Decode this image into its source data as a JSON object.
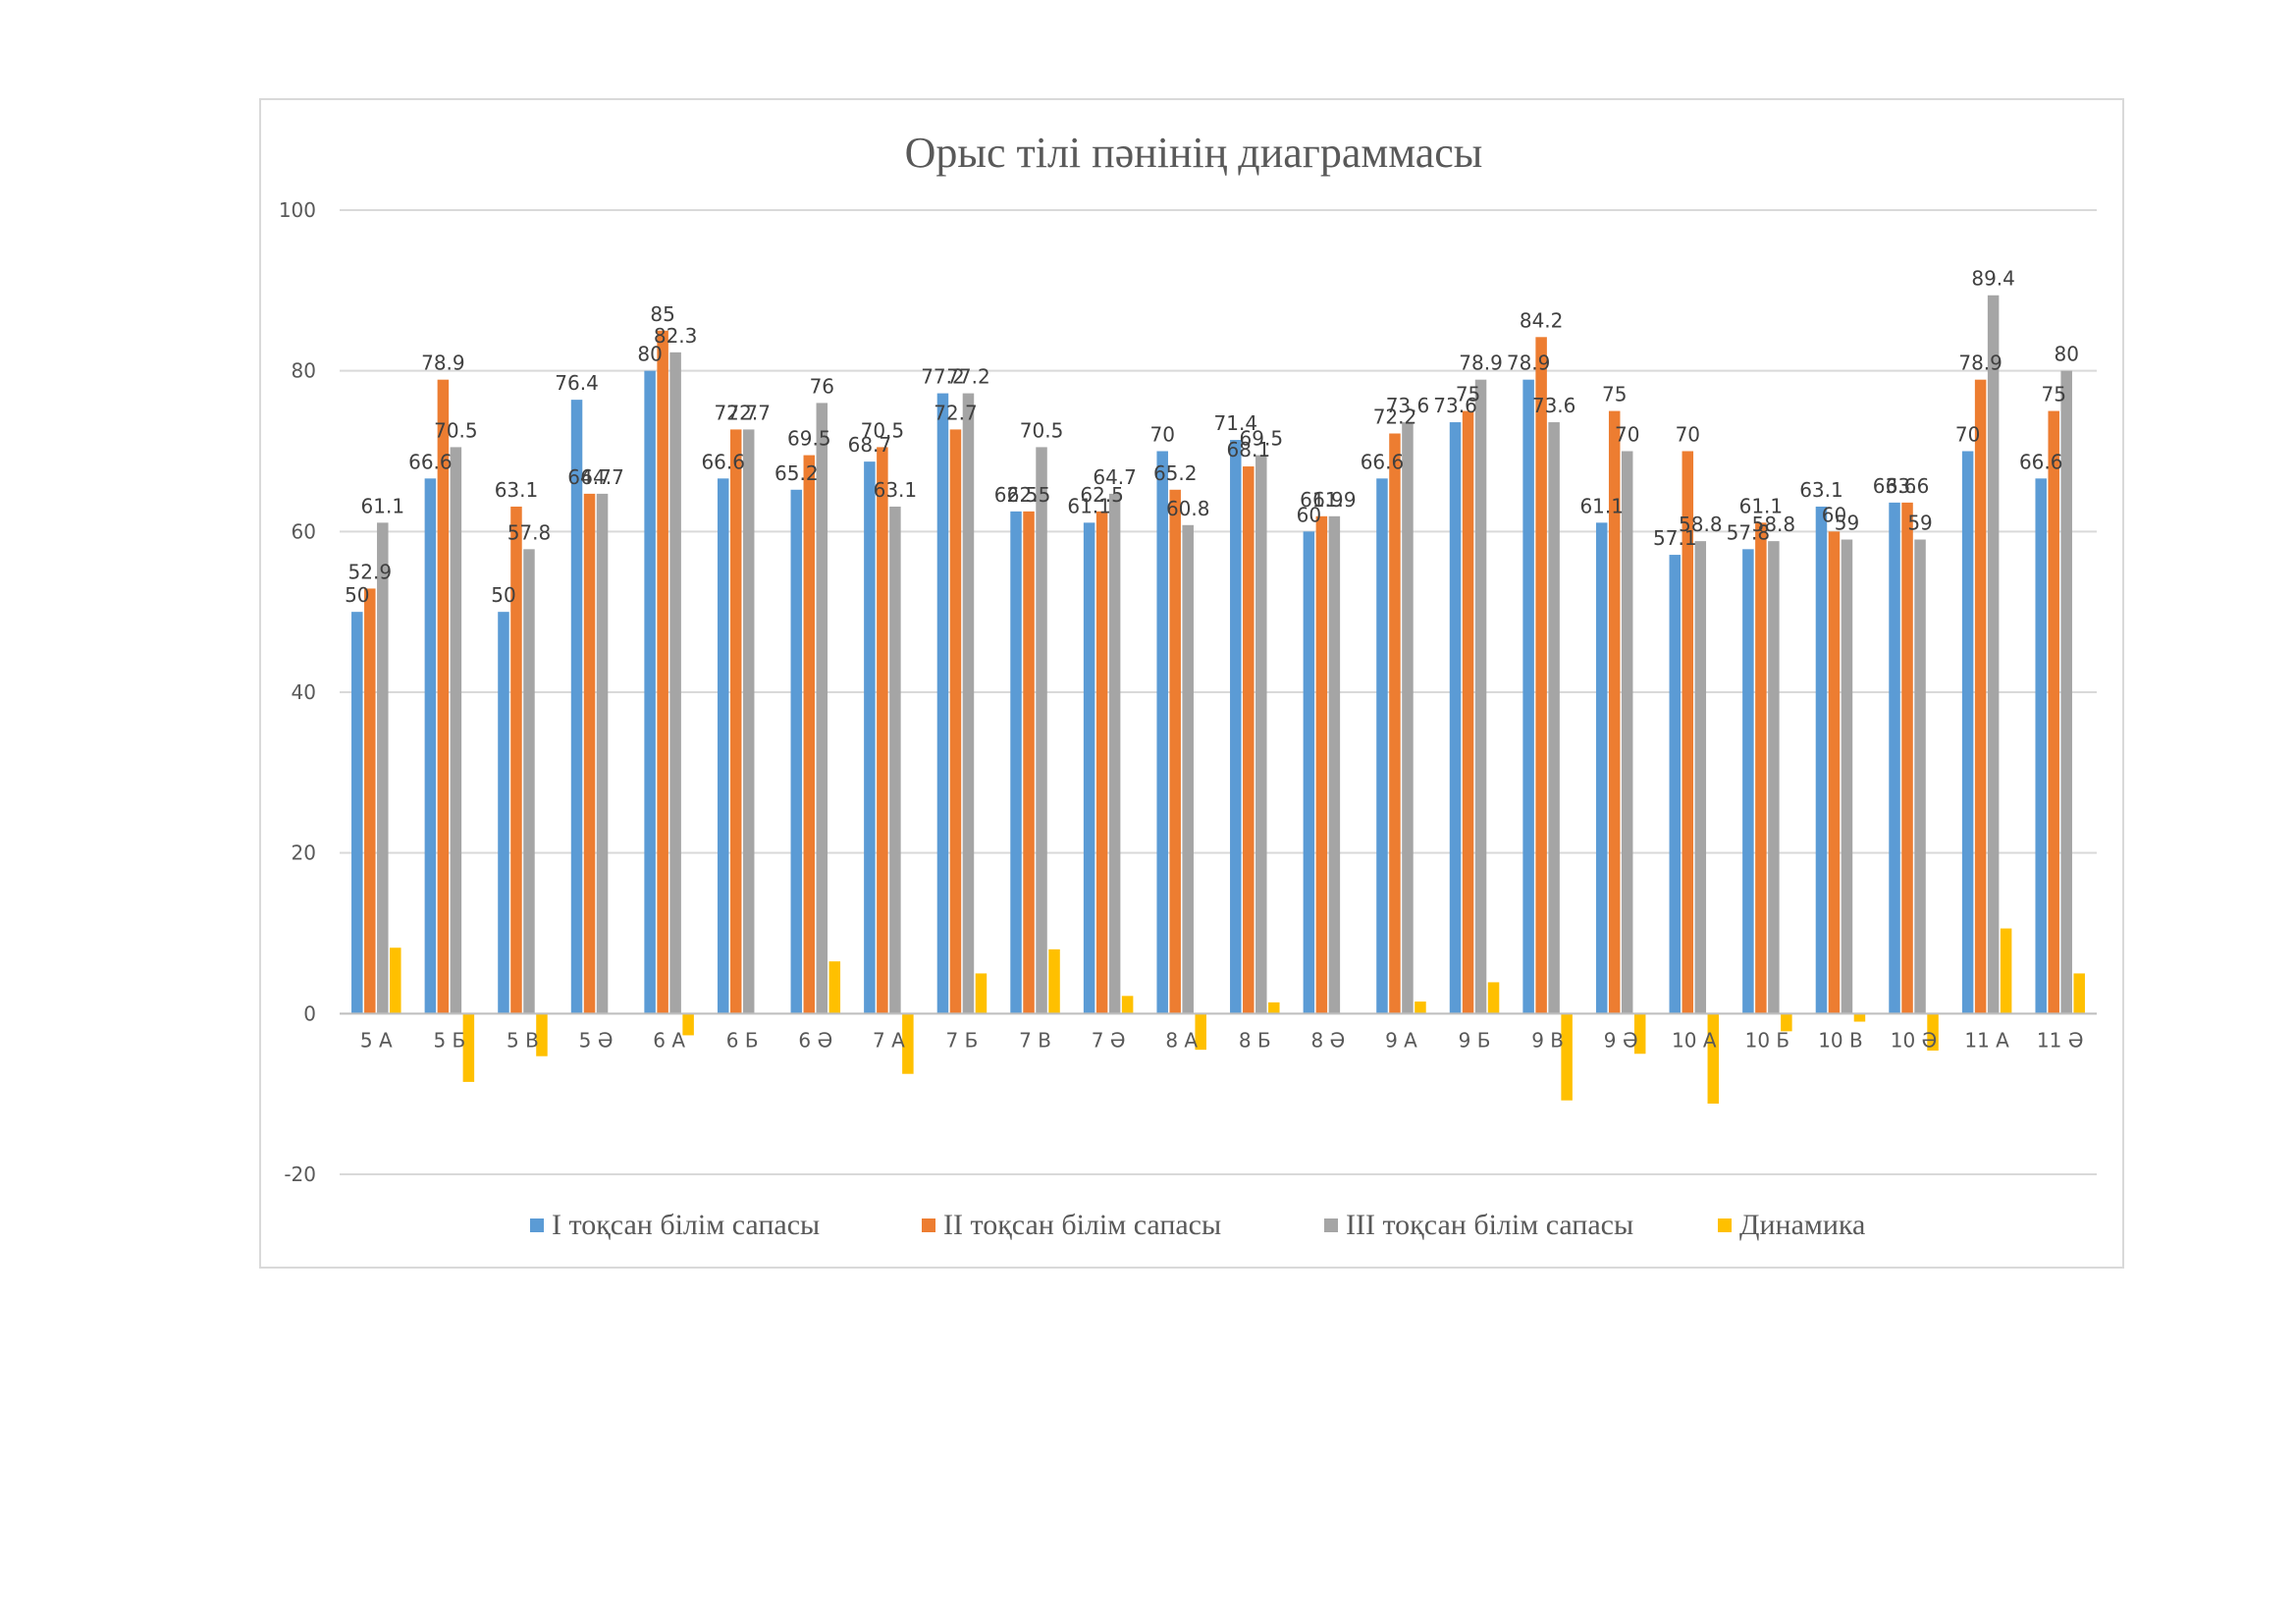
{
  "chart_data": {
    "type": "bar",
    "title": "Орыс тілі пәнінің диаграммасы",
    "xlabel": "",
    "ylabel": "",
    "ylim": [
      -20,
      100
    ],
    "yticks": [
      100,
      80,
      60,
      40,
      20,
      0,
      -20
    ],
    "grid": true,
    "legend_position": "bottom",
    "categories": [
      "5 А",
      "5 Б",
      "5 В",
      "5 Ә",
      "6 А",
      "6 Б",
      "6 Ә",
      "7 А",
      "7 Б",
      "7 В",
      "7 Ә",
      "8 А",
      "8 Б",
      "8 Ә",
      "9 А",
      "9 Б",
      "9 В",
      "9 Ә",
      "10 А",
      "10 Б",
      "10 В",
      "10 Ә",
      "11 А",
      "11 Ә"
    ],
    "series": [
      {
        "name": "І тоқсан білім сапасы",
        "color": "#5b9bd5",
        "values": [
          50,
          66.6,
          50,
          76.4,
          80,
          66.6,
          65.2,
          68.7,
          77.2,
          62.5,
          61.1,
          70,
          71.4,
          60,
          66.6,
          73.6,
          78.9,
          61.1,
          57.1,
          57.8,
          63.1,
          63.6,
          70,
          66.6
        ]
      },
      {
        "name": "ІІ тоқсан білім сапасы",
        "color": "#ed7d31",
        "values": [
          52.9,
          78.9,
          63.1,
          64.7,
          85,
          72.7,
          69.5,
          70.5,
          72.7,
          62.5,
          62.5,
          65.2,
          68.1,
          61.9,
          72.2,
          75,
          84.2,
          75,
          70,
          61.1,
          60,
          63.6,
          78.9,
          75
        ]
      },
      {
        "name": "ІІІ тоқсан білім сапасы",
        "color": "#a5a5a5",
        "values": [
          61.1,
          70.5,
          57.8,
          64.7,
          82.3,
          72.7,
          76,
          63.1,
          77.2,
          70.5,
          64.7,
          60.8,
          69.5,
          61.9,
          73.6,
          78.9,
          73.6,
          70,
          58.8,
          58.8,
          59,
          59,
          89.4,
          80
        ]
      },
      {
        "name": "Динамика",
        "color": "#ffc000",
        "values": [
          8.2,
          -8.5,
          -5.3,
          0,
          -2.7,
          0,
          6.5,
          -7.5,
          5,
          8,
          2.2,
          -4.5,
          1.4,
          0,
          1.5,
          3.9,
          -10.8,
          -5,
          -11.2,
          -2.2,
          -1,
          -4.6,
          10.6,
          5
        ]
      }
    ]
  }
}
